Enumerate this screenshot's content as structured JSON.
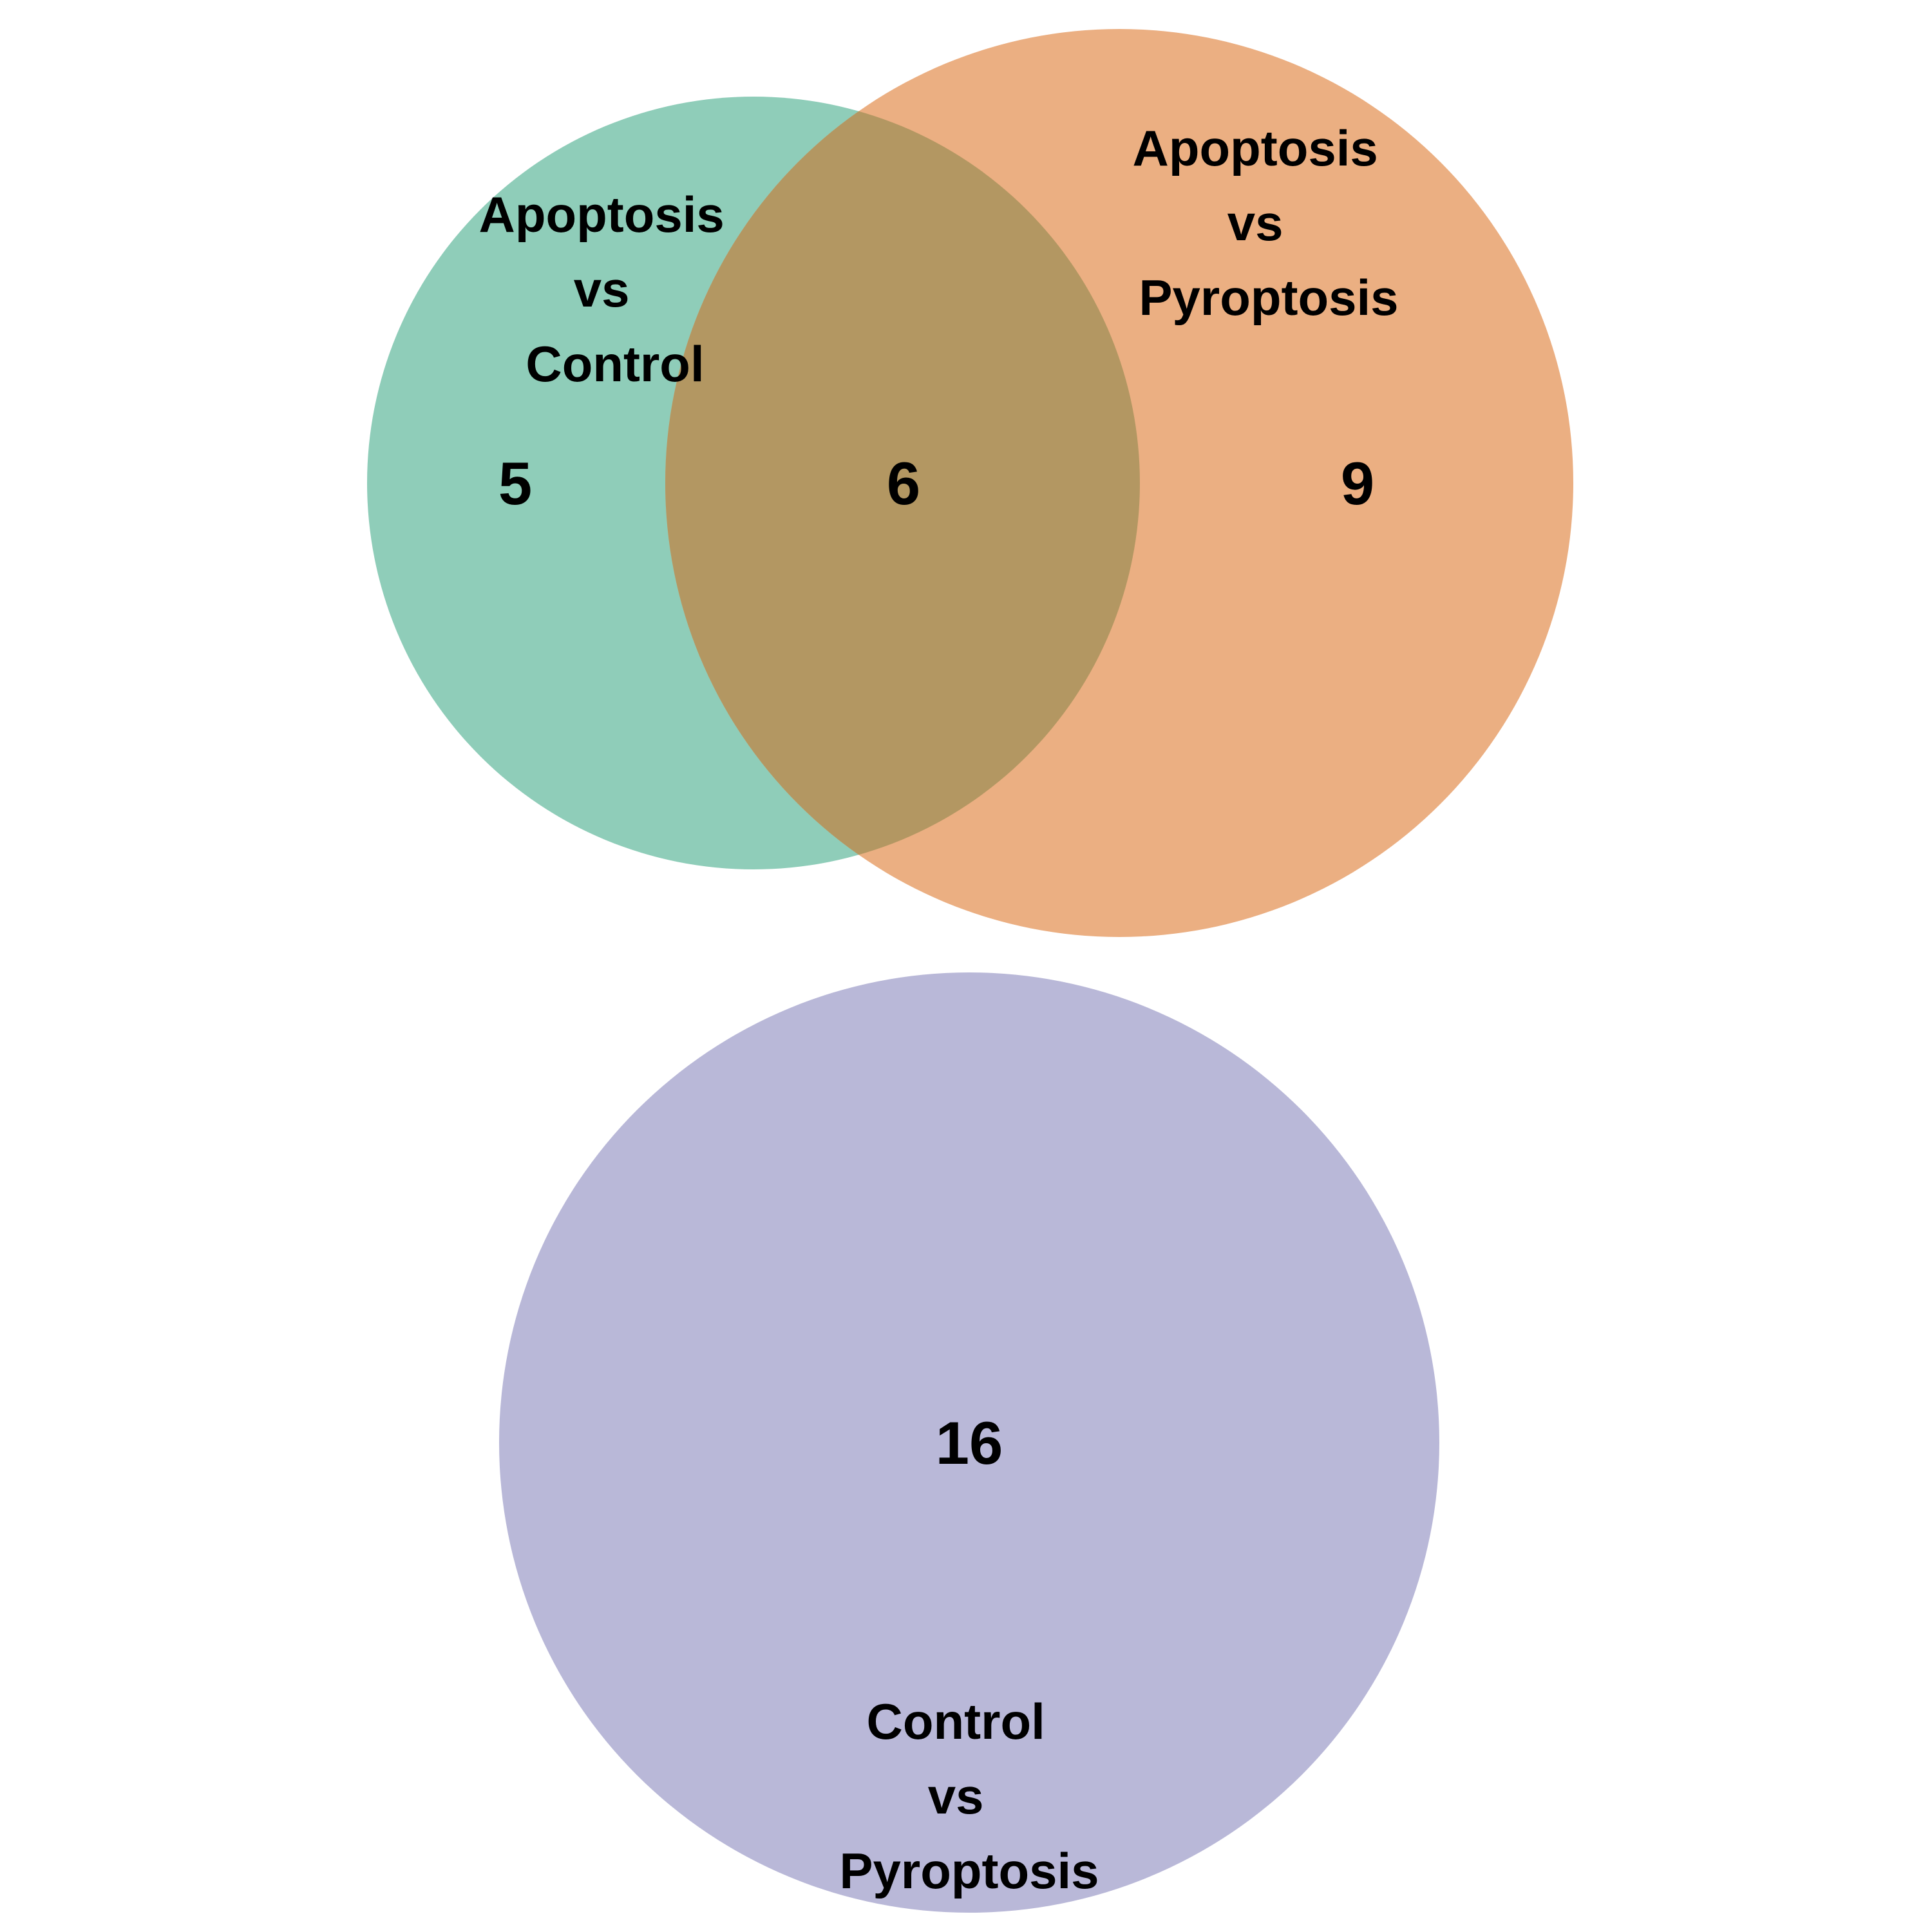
{
  "chart_data": {
    "type": "venn",
    "sets": [
      {
        "id": "apoptosis_vs_control",
        "label_lines": [
          "Apoptosis",
          "vs",
          "Control"
        ],
        "color": "#8FCDB9"
      },
      {
        "id": "apoptosis_vs_pyroptosis",
        "label_lines": [
          "Apoptosis",
          "vs",
          "Pyroptosis"
        ],
        "color": "#EBAF82"
      },
      {
        "id": "control_vs_pyroptosis",
        "label_lines": [
          "Control",
          "vs",
          "Pyroptosis"
        ],
        "color": "#B9B8D8"
      }
    ],
    "intersection_color": "#B39762",
    "regions": [
      {
        "sets": [
          "apoptosis_vs_control"
        ],
        "count": "5"
      },
      {
        "sets": [
          "apoptosis_vs_control",
          "apoptosis_vs_pyroptosis"
        ],
        "count": "6"
      },
      {
        "sets": [
          "apoptosis_vs_pyroptosis"
        ],
        "count": "9"
      },
      {
        "sets": [
          "control_vs_pyroptosis"
        ],
        "count": "16"
      }
    ]
  }
}
